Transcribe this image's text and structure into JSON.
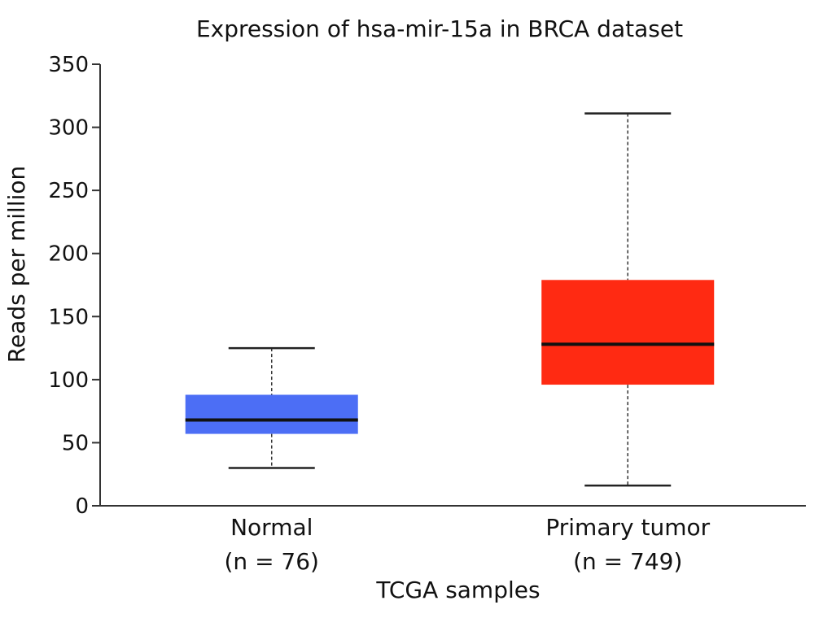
{
  "chart_data": {
    "type": "box",
    "title": "Expression of hsa-mir-15a in BRCA dataset",
    "xlabel": "TCGA samples",
    "ylabel": "Reads per million",
    "ylim": [
      0,
      350
    ],
    "yticks": [
      0,
      50,
      100,
      150,
      200,
      250,
      300,
      350
    ],
    "grid": false,
    "categories": [
      {
        "name": "Normal",
        "n_label": "(n = 76)",
        "color": "#4c6ef5",
        "whisker_low": 30,
        "q1": 57,
        "median": 68,
        "q3": 88,
        "whisker_high": 125
      },
      {
        "name": "Primary tumor",
        "n_label": "(n = 749)",
        "color": "#ff2a12",
        "whisker_low": 16,
        "q1": 96,
        "median": 128,
        "q3": 179,
        "whisker_high": 311
      }
    ]
  }
}
